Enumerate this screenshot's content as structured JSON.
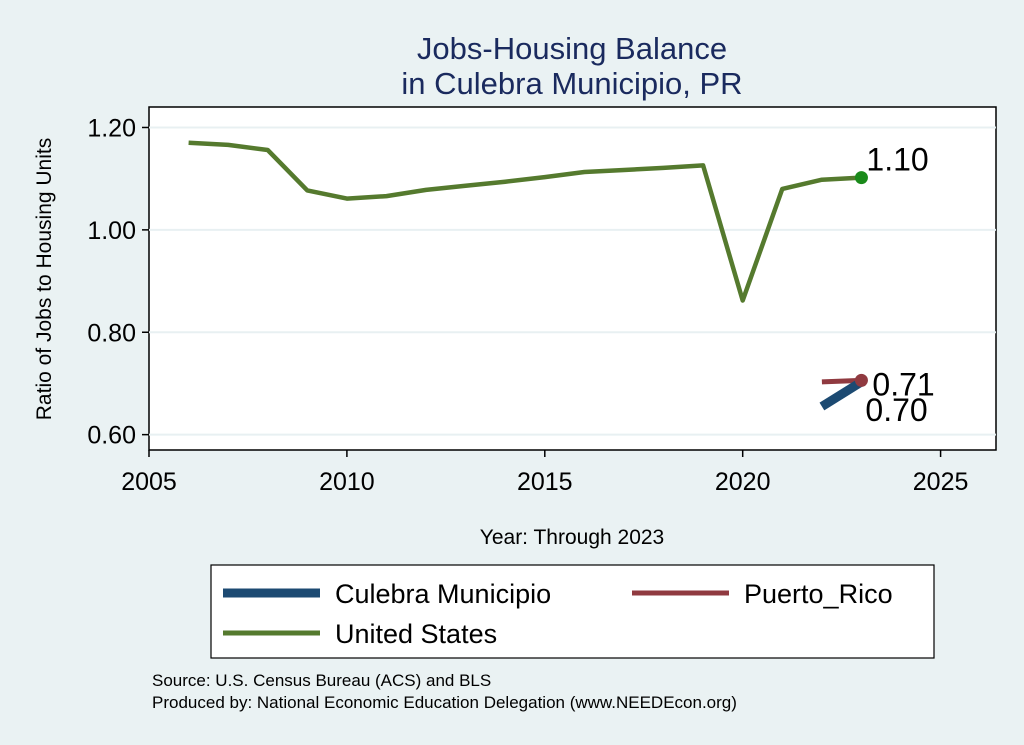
{
  "chart_data": {
    "type": "line",
    "title": [
      "Jobs-Housing Balance",
      "in Culebra Municipio, PR"
    ],
    "xlabel": "Year: Through 2023",
    "ylabel": "Ratio of Jobs to Housing Units",
    "xlim": [
      2005,
      2026.4
    ],
    "ylim": [
      0.57,
      1.24
    ],
    "x_ticks": [
      2005,
      2010,
      2015,
      2020,
      2025
    ],
    "x_tick_labels": [
      "2005",
      "2010",
      "2015",
      "2020",
      "2025"
    ],
    "y_ticks": [
      0.6,
      0.8,
      1.0,
      1.2
    ],
    "y_tick_labels": [
      "0.60",
      "0.80",
      "1.00",
      "1.20"
    ],
    "grid": true,
    "legend_position": "bottom",
    "series": [
      {
        "name": "Culebra Municipio",
        "color": "#1c4a72",
        "x": [
          2022,
          2023
        ],
        "y": [
          0.655,
          0.703
        ],
        "end_label": "0.70"
      },
      {
        "name": "Puerto_Rico",
        "color": "#903a40",
        "x": [
          2022,
          2023
        ],
        "y": [
          0.703,
          0.706
        ],
        "end_label": "0.71"
      },
      {
        "name": "United States",
        "color": "#557a2e",
        "x": [
          2006,
          2007,
          2008,
          2009,
          2010,
          2011,
          2012,
          2013,
          2014,
          2015,
          2016,
          2017,
          2018,
          2019,
          2020,
          2021,
          2022,
          2023
        ],
        "y": [
          1.17,
          1.166,
          1.156,
          1.077,
          1.061,
          1.066,
          1.078,
          1.086,
          1.094,
          1.103,
          1.113,
          1.117,
          1.121,
          1.126,
          0.862,
          1.08,
          1.098,
          1.102
        ],
        "end_label": "1.10"
      }
    ]
  },
  "notes": {
    "source": "Source: U.S. Census Bureau (ACS) and BLS",
    "produced_by": "Produced by: National Economic Education Delegation (www.NEEDEcon.org)"
  },
  "colors": {
    "background": "#eaf2f3",
    "plot_area": "#ffffff",
    "grid": "#e8f0f2",
    "title": "#1a2a5e",
    "us_marker": "#1a8a1a",
    "pr_marker": "#903a40"
  }
}
